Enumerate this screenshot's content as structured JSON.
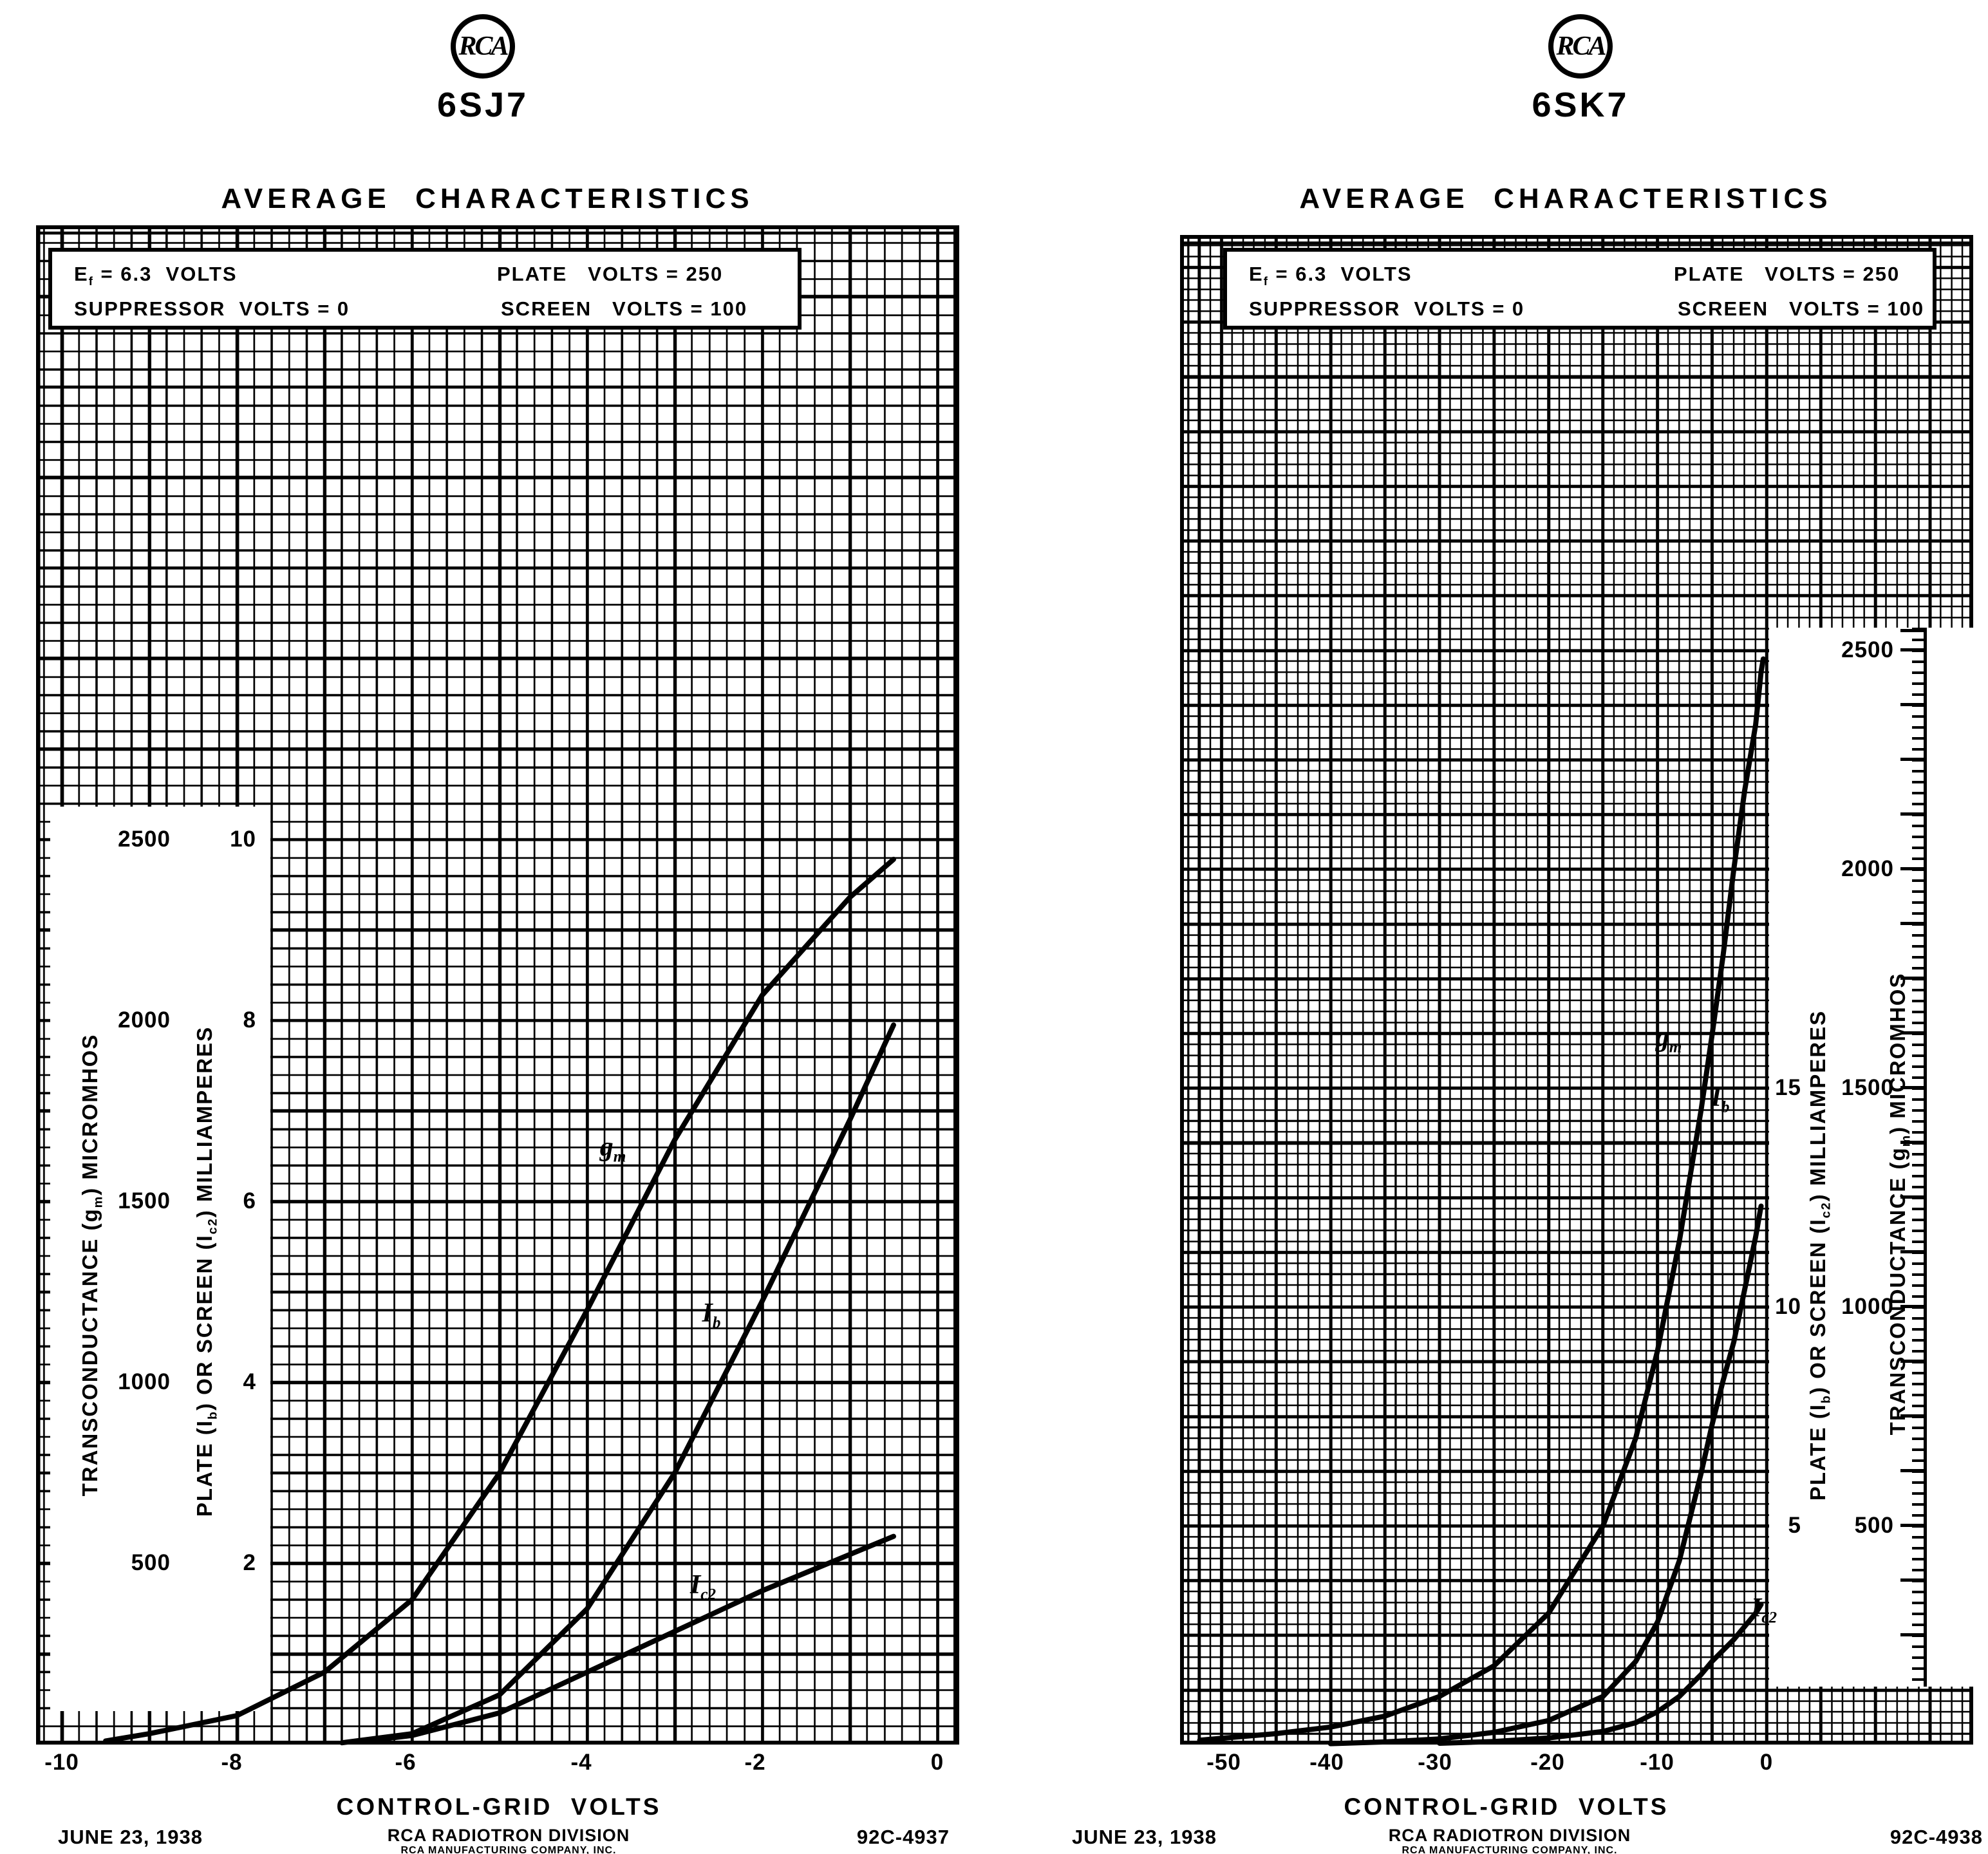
{
  "page": {
    "background": "#ffffff",
    "ink": "#000000"
  },
  "left_chart": {
    "brand": "RCA",
    "tube": "6SJ7",
    "title": "AVERAGE  CHARACTERISTICS",
    "conditions": {
      "ef_main": "E",
      "ef_sub": "f",
      "ef_rest": " = 6.3  VOLTS",
      "suppressor": "SUPPRESSOR  VOLTS = 0",
      "plate": "PLATE   VOLTS = 250",
      "screen": "SCREEN   VOLTS = 100"
    },
    "y_micromhos": {
      "ticks": [
        "2500",
        "2000",
        "1500",
        "1000",
        "500"
      ],
      "label_pre": "TRANSCONDUCTANCE (g",
      "label_sub": "m",
      "label_post": ") MICROMHOS"
    },
    "y_milliamps": {
      "ticks": [
        "10",
        "8",
        "6",
        "4",
        "2"
      ],
      "label_p1": "PLATE (I",
      "label_s1": "b",
      "label_p2": ") OR  SCREEN (I",
      "label_s2": "c2",
      "label_p3": ") MILLIAMPERES"
    },
    "x_axis": {
      "ticks": [
        "-10",
        "-8",
        "-6",
        "-4",
        "-2",
        "0"
      ],
      "label": "CONTROL-GRID  VOLTS"
    },
    "curves": {
      "gm_main": "g",
      "gm_sub": "m",
      "ib_main": "I",
      "ib_sub": "b",
      "ic2_main": "I",
      "ic2_sub": "c2"
    },
    "footer": {
      "date": "JUNE 23, 1938",
      "division": "RCA RADIOTRON DIVISION",
      "company": "RCA MANUFACTURING COMPANY, INC.",
      "code": "92C-4937"
    }
  },
  "right_chart": {
    "brand": "RCA",
    "tube": "6SK7",
    "title": "AVERAGE  CHARACTERISTICS",
    "conditions": {
      "ef_main": "E",
      "ef_sub": "f",
      "ef_rest": " = 6.3  VOLTS",
      "suppressor": "SUPPRESSOR  VOLTS = 0",
      "plate": "PLATE   VOLTS = 250",
      "screen": "SCREEN   VOLTS = 100"
    },
    "y_micromhos": {
      "ticks": [
        "2500",
        "2000",
        "1500",
        "1000",
        "500"
      ],
      "label_pre": "TRANSCONDUCTANCE (g",
      "label_sub": "m",
      "label_post": ") MICROMHOS"
    },
    "y_milliamps": {
      "ticks": [
        "15",
        "10",
        "5"
      ],
      "label_p1": "PLATE (I",
      "label_s1": "b",
      "label_p2": ") OR  SCREEN (I",
      "label_s2": "c2",
      "label_p3": ") MILLIAMPERES"
    },
    "x_axis": {
      "ticks": [
        "-50",
        "-40",
        "-30",
        "-20",
        "-10",
        "0"
      ],
      "label": "CONTROL-GRID  VOLTS"
    },
    "curves": {
      "gm_main": "g",
      "gm_sub": "m",
      "ib_main": "I",
      "ib_sub": "b",
      "ic2_main": "I",
      "ic2_sub": "c2"
    },
    "footer": {
      "date": "JUNE 23, 1938",
      "division": "RCA RADIOTRON DIVISION",
      "company": "RCA MANUFACTURING COMPANY, INC.",
      "code": "92C-4938"
    }
  },
  "chart_data": [
    {
      "type": "line",
      "title": "6SJ7 AVERAGE CHARACTERISTICS",
      "xlabel": "CONTROL-GRID VOLTS",
      "x_range": [
        -10,
        0
      ],
      "y_left": {
        "label": "TRANSCONDUCTANCE (gm) MICROMHOS",
        "range": [
          0,
          2500
        ],
        "ticks": [
          500,
          1000,
          1500,
          2000,
          2500
        ]
      },
      "y_right": {
        "label": "PLATE (Ib) OR SCREEN (Ic2) MILLIAMPERES",
        "range": [
          0,
          10
        ],
        "ticks": [
          2,
          4,
          6,
          8,
          10
        ]
      },
      "grid": true,
      "conditions": {
        "heater_volts": 6.3,
        "suppressor_volts": 0,
        "plate_volts": 250,
        "screen_volts": 100
      },
      "series": [
        {
          "name": "gm",
          "unit": "micromhos",
          "points": [
            [
              -9.5,
              10
            ],
            [
              -9,
              30
            ],
            [
              -8,
              80
            ],
            [
              -7,
              200
            ],
            [
              -6,
              400
            ],
            [
              -5,
              750
            ],
            [
              -4,
              1200
            ],
            [
              -3,
              1670
            ],
            [
              -2,
              2070
            ],
            [
              -1,
              2340
            ],
            [
              -0.5,
              2445
            ]
          ]
        },
        {
          "name": "Ib",
          "unit": "mA",
          "points": [
            [
              -6.8,
              0.02
            ],
            [
              -6,
              0.12
            ],
            [
              -5,
              0.55
            ],
            [
              -4,
              1.5
            ],
            [
              -3,
              3.0
            ],
            [
              -2,
              4.9
            ],
            [
              -1,
              6.9
            ],
            [
              -0.5,
              7.95
            ]
          ]
        },
        {
          "name": "Ic2",
          "unit": "mA",
          "points": [
            [
              -6.6,
              0.03
            ],
            [
              -6,
              0.1
            ],
            [
              -5,
              0.35
            ],
            [
              -4,
              0.8
            ],
            [
              -3,
              1.25
            ],
            [
              -2,
              1.7
            ],
            [
              -1,
              2.1
            ],
            [
              -0.5,
              2.3
            ]
          ]
        }
      ]
    },
    {
      "type": "line",
      "title": "6SK7 AVERAGE CHARACTERISTICS",
      "xlabel": "CONTROL-GRID VOLTS",
      "x_range": [
        -55,
        0
      ],
      "y_left": {
        "label": "TRANSCONDUCTANCE (gm) MICROMHOS",
        "range": [
          0,
          2500
        ],
        "ticks": [
          500,
          1000,
          1500,
          2000,
          2500
        ]
      },
      "y_right": {
        "label": "PLATE (Ib) OR SCREEN (Ic2) MILLIAMPERES",
        "range": [
          0,
          25
        ],
        "ticks": [
          5,
          10,
          15
        ]
      },
      "grid": true,
      "conditions": {
        "heater_volts": 6.3,
        "suppressor_volts": 0,
        "plate_volts": 250,
        "screen_volts": 100
      },
      "series": [
        {
          "name": "gm",
          "unit": "micromhos",
          "points": [
            [
              -52,
              10
            ],
            [
              -45,
              25
            ],
            [
              -40,
              40
            ],
            [
              -35,
              65
            ],
            [
              -30,
              110
            ],
            [
              -25,
              180
            ],
            [
              -20,
              300
            ],
            [
              -15,
              500
            ],
            [
              -12,
              700
            ],
            [
              -10,
              900
            ],
            [
              -8,
              1150
            ],
            [
              -6,
              1450
            ],
            [
              -5,
              1620
            ],
            [
              -4,
              1800
            ],
            [
              -3,
              2000
            ],
            [
              -2,
              2180
            ],
            [
              -1,
              2330
            ],
            [
              -0.5,
              2450
            ],
            [
              -0.3,
              2480
            ]
          ]
        },
        {
          "name": "Ib",
          "unit": "mA",
          "points": [
            [
              -40,
              0.02
            ],
            [
              -35,
              0.06
            ],
            [
              -30,
              0.13
            ],
            [
              -25,
              0.28
            ],
            [
              -20,
              0.55
            ],
            [
              -15,
              1.1
            ],
            [
              -12,
              1.9
            ],
            [
              -10,
              2.8
            ],
            [
              -8,
              4.2
            ],
            [
              -6,
              6.2
            ],
            [
              -5,
              7.3
            ],
            [
              -4,
              8.3
            ],
            [
              -3,
              9.2
            ],
            [
              -2,
              10.4
            ],
            [
              -1,
              11.6
            ],
            [
              -0.5,
              12.3
            ]
          ]
        },
        {
          "name": "Ic2",
          "unit": "mA",
          "points": [
            [
              -30,
              0.03
            ],
            [
              -25,
              0.07
            ],
            [
              -20,
              0.15
            ],
            [
              -15,
              0.3
            ],
            [
              -12,
              0.5
            ],
            [
              -10,
              0.75
            ],
            [
              -8,
              1.1
            ],
            [
              -6,
              1.6
            ],
            [
              -5,
              1.9
            ],
            [
              -4,
              2.15
            ],
            [
              -3,
              2.4
            ],
            [
              -2,
              2.7
            ],
            [
              -1,
              3.0
            ],
            [
              -0.5,
              3.2
            ]
          ]
        }
      ]
    }
  ]
}
